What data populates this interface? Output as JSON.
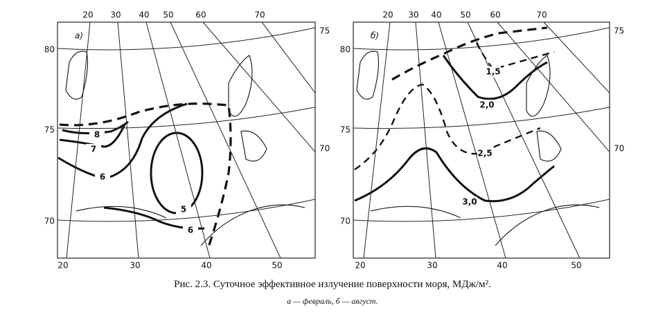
{
  "panels": [
    {
      "label": "а)",
      "top_lon_labels": [
        "20",
        "30",
        "40",
        "50",
        "60",
        "70"
      ],
      "bottom_lon_labels": [
        "20",
        "30",
        "40",
        "50"
      ],
      "left_lat_labels": [
        "80",
        "75",
        "70"
      ],
      "right_lat_labels": [
        "75",
        "70"
      ],
      "contour_labels": [
        "8",
        "7",
        "6",
        "5",
        "6"
      ]
    },
    {
      "label": "б)",
      "top_lon_labels": [
        "20",
        "30",
        "40",
        "50",
        "60",
        "70"
      ],
      "bottom_lon_labels": [
        "20",
        "30",
        "40",
        "50"
      ],
      "left_lat_labels": [
        "80",
        "75",
        "70"
      ],
      "right_lat_labels": [
        "75",
        "70"
      ],
      "contour_labels": [
        "1,5",
        "2,0",
        "2,5",
        "3,0"
      ]
    }
  ],
  "caption": {
    "title": "Рис. 2.3. Суточное эффективное излучение поверхности моря, МДж/м².",
    "subtitle": "а — февраль, б — август."
  }
}
